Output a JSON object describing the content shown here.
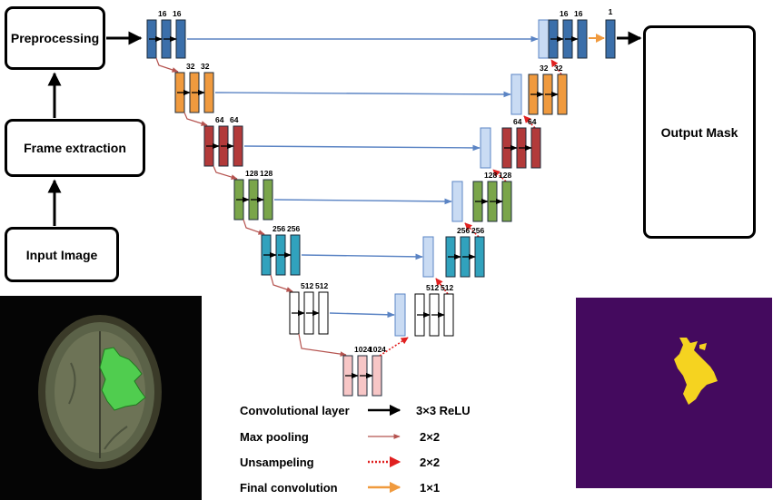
{
  "pipeline": {
    "preprocessing": "Preprocessing",
    "frame_extraction": "Frame extraction",
    "input_image": "Input Image",
    "output_mask": "Output Mask"
  },
  "unet": {
    "encoder": [
      {
        "labels": [
          "16",
          "16"
        ],
        "color": "#3b6faa"
      },
      {
        "labels": [
          "32",
          "32"
        ],
        "color": "#f09a3e"
      },
      {
        "labels": [
          "64",
          "64"
        ],
        "color": "#b23a3a"
      },
      {
        "labels": [
          "128",
          "128"
        ],
        "color": "#7aa54a"
      },
      {
        "labels": [
          "256",
          "256"
        ],
        "color": "#31a2bd"
      },
      {
        "labels": [
          "512",
          "512"
        ],
        "color": "#ffffff"
      }
    ],
    "bottleneck": {
      "labels": [
        "1024",
        "1024"
      ],
      "color": "#f7c6c6"
    },
    "decoder": [
      {
        "labels": [
          "16",
          "16"
        ],
        "color": "#3b6faa"
      },
      {
        "labels": [
          "32",
          "32"
        ],
        "color": "#f09a3e"
      },
      {
        "labels": [
          "64",
          "64"
        ],
        "color": "#b23a3a"
      },
      {
        "labels": [
          "128",
          "128"
        ],
        "color": "#7aa54a"
      },
      {
        "labels": [
          "256",
          "256"
        ],
        "color": "#31a2bd"
      },
      {
        "labels": [
          "512",
          "512"
        ],
        "color": "#ffffff"
      }
    ],
    "final_label": "1",
    "skip_color": "#5b84c4",
    "concat_color": "#c9dbf3"
  },
  "legend": [
    {
      "name": "Convolutional layer",
      "value": "3×3 ReLU",
      "color": "#000000",
      "style": "solid-thick"
    },
    {
      "name": "Max pooling",
      "value": "2×2",
      "color": "#b5534f",
      "style": "solid-thin"
    },
    {
      "name": "Unsampeling",
      "value": "2×2",
      "color": "#e02020",
      "style": "dotted"
    },
    {
      "name": "Final convolution",
      "value": "1×1",
      "color": "#f09a3e",
      "style": "solid-medium"
    }
  ],
  "images": {
    "mri_icon": "mri-brain-scan",
    "mask_icon": "segmentation-mask",
    "mask_background": "#440a5e",
    "mask_foreground": "#f5d320",
    "tumor_overlay": "#4fd24f"
  }
}
